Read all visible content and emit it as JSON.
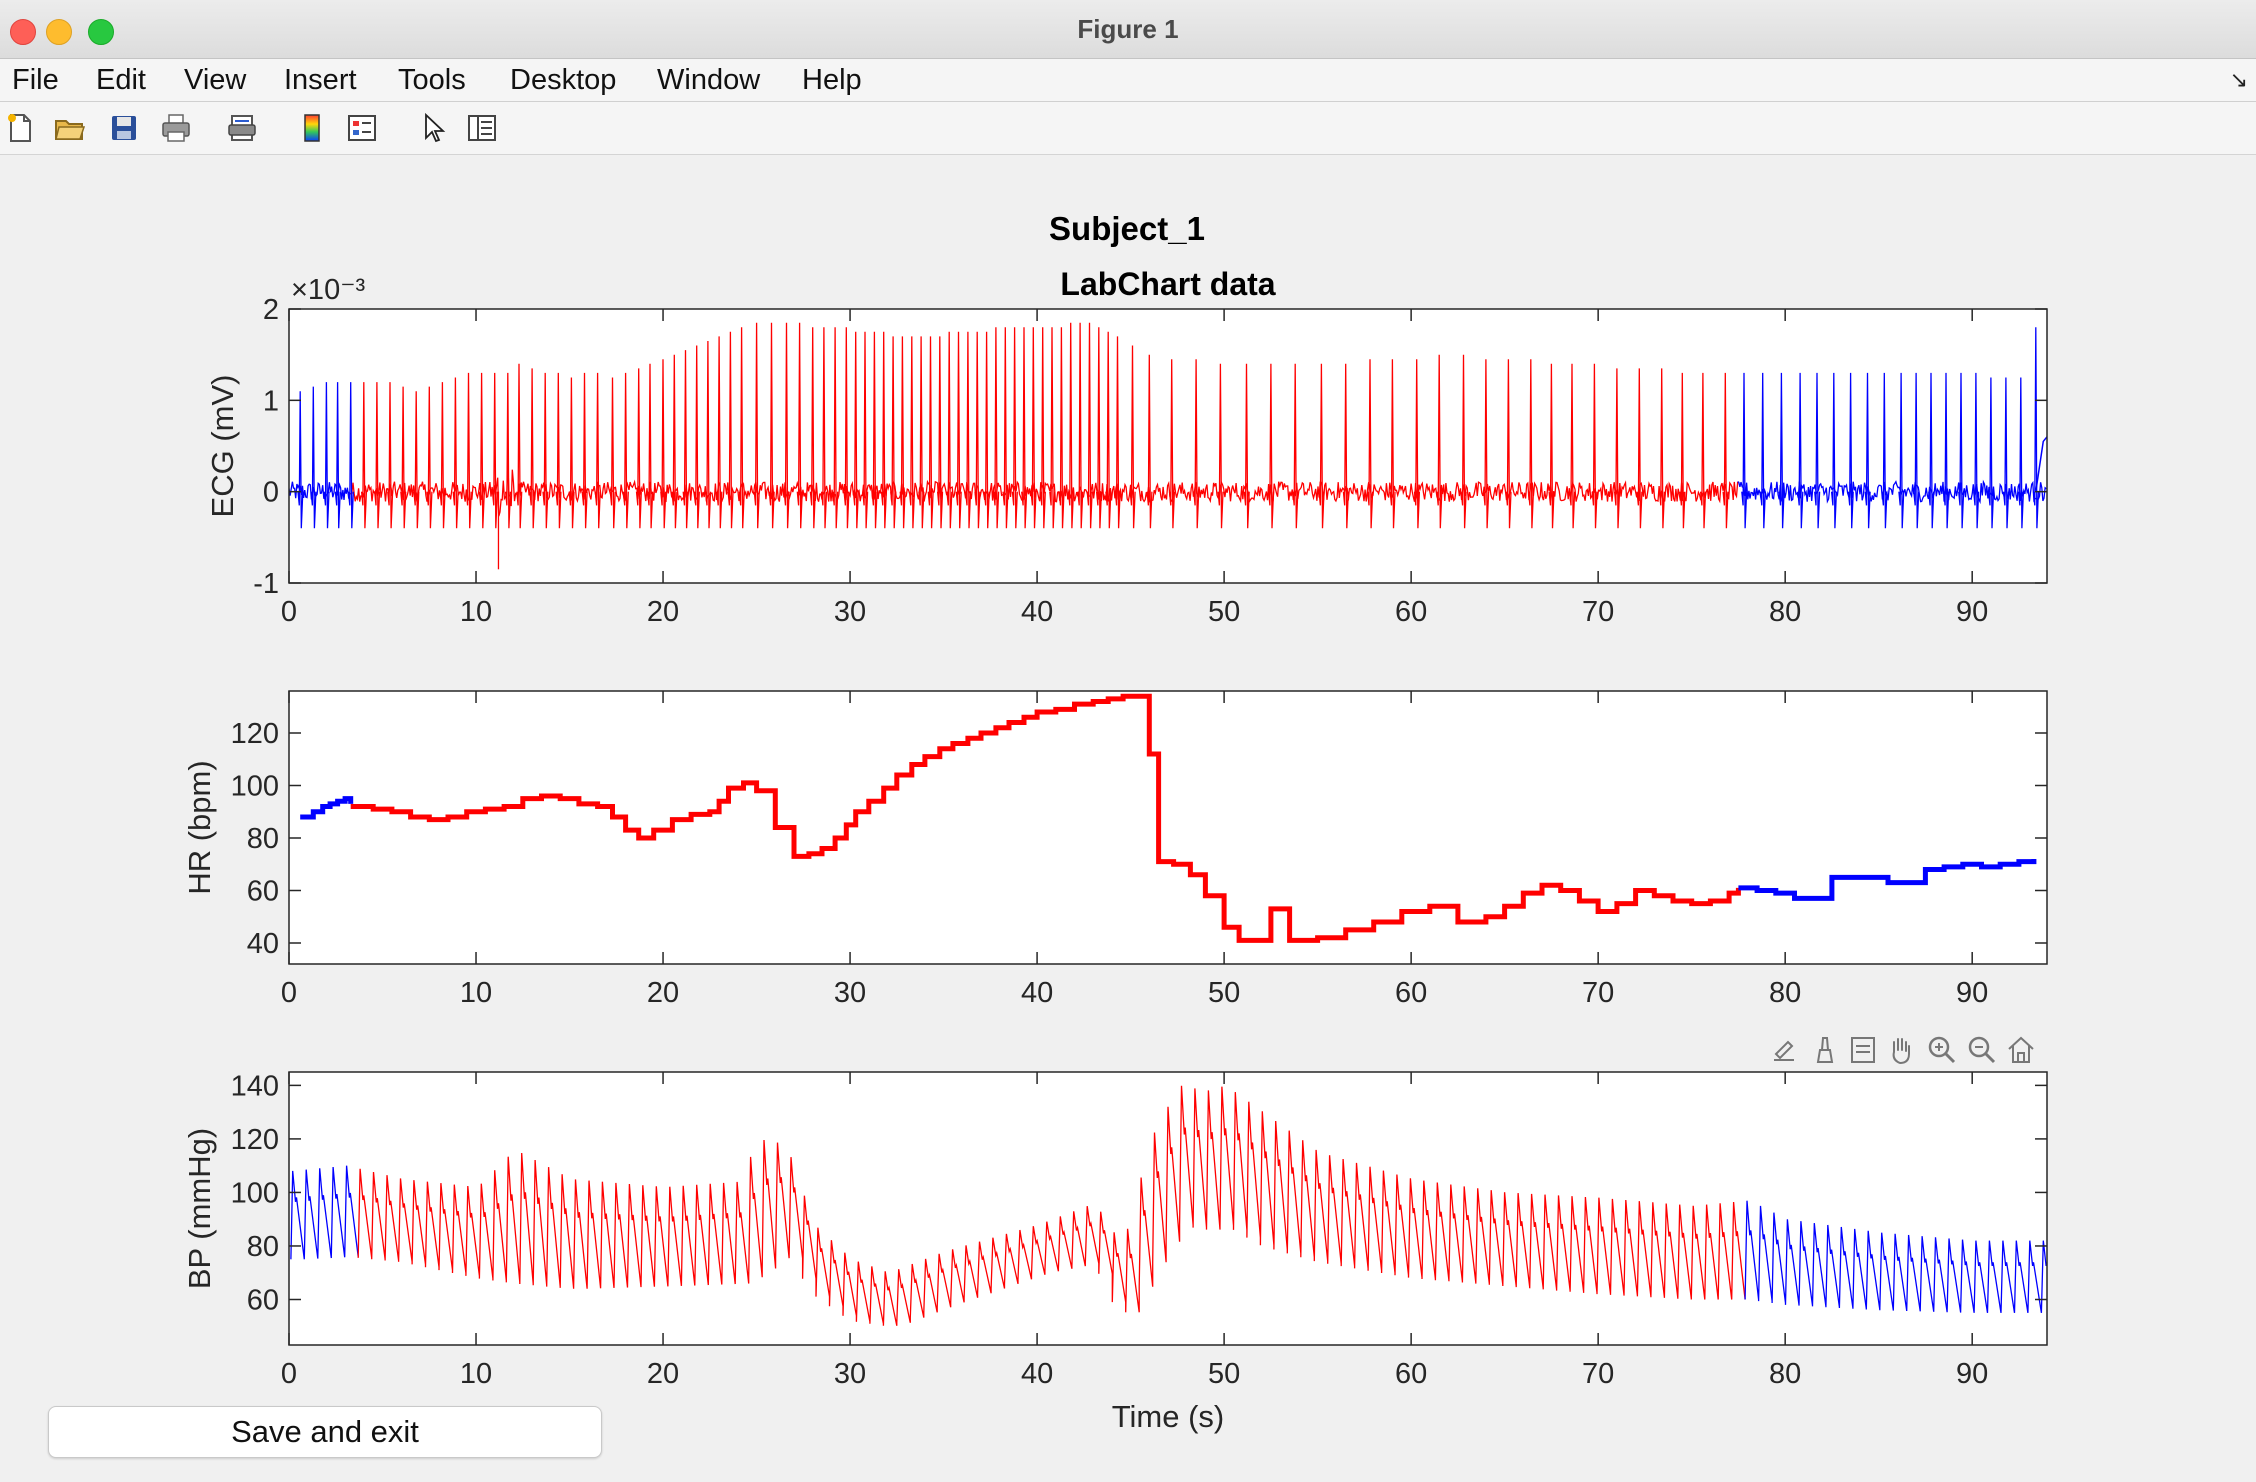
{
  "window": {
    "title": "Figure 1"
  },
  "menu": [
    "File",
    "Edit",
    "View",
    "Insert",
    "Tools",
    "Desktop",
    "Window",
    "Help"
  ],
  "toolbar": {
    "icons": [
      "new-figure-icon",
      "open-file-icon",
      "save-icon",
      "print-icon",
      "print-preview-icon",
      "colorbar-icon",
      "legend-icon",
      "pointer-icon",
      "property-inspector-icon"
    ]
  },
  "axes_toolbar": {
    "icons": [
      "export-icon",
      "brush-icon",
      "datatip-icon",
      "pan-icon",
      "zoom-in-icon",
      "zoom-out-icon",
      "home-icon"
    ]
  },
  "figure": {
    "suptitle": "Subject_1",
    "save_button": "Save and exit"
  },
  "colors": {
    "baseline": "#0000ff",
    "event": "#ff0000",
    "axis": "#262626"
  },
  "chart_data": [
    {
      "type": "line",
      "title": "LabChart data",
      "ylabel": "ECG (mV)",
      "xlabel": "",
      "xlim": [
        0,
        94
      ],
      "ylim": [
        -1,
        2
      ],
      "yticks": [
        -1,
        0,
        1,
        2
      ],
      "xticks": [
        0,
        10,
        20,
        30,
        40,
        50,
        60,
        70,
        80,
        90
      ],
      "y_exponent": "×10⁻³",
      "segments": [
        {
          "color": "#0000ff",
          "x_start": 0,
          "x_end": 3.3
        },
        {
          "color": "#ff0000",
          "x_start": 3.3,
          "x_end": 77.5
        },
        {
          "color": "#0000ff",
          "x_start": 77.5,
          "x_end": 94
        }
      ],
      "r_peaks": [
        [
          0.6,
          1.1
        ],
        [
          1.3,
          1.15
        ],
        [
          2.0,
          1.2
        ],
        [
          2.6,
          1.2
        ],
        [
          3.3,
          1.2
        ],
        [
          4.0,
          1.2
        ],
        [
          4.7,
          1.2
        ],
        [
          5.4,
          1.2
        ],
        [
          6.1,
          1.15
        ],
        [
          6.8,
          1.1
        ],
        [
          7.5,
          1.15
        ],
        [
          8.2,
          1.2
        ],
        [
          8.9,
          1.25
        ],
        [
          9.6,
          1.3
        ],
        [
          10.3,
          1.3
        ],
        [
          11.0,
          1.3
        ],
        [
          11.7,
          1.3
        ],
        [
          12.3,
          1.4
        ],
        [
          13.0,
          1.35
        ],
        [
          13.7,
          1.3
        ],
        [
          14.4,
          1.3
        ],
        [
          15.1,
          1.25
        ],
        [
          15.8,
          1.3
        ],
        [
          16.5,
          1.3
        ],
        [
          17.3,
          1.25
        ],
        [
          18.0,
          1.3
        ],
        [
          18.7,
          1.35
        ],
        [
          19.3,
          1.4
        ],
        [
          20.0,
          1.45
        ],
        [
          20.6,
          1.5
        ],
        [
          21.2,
          1.55
        ],
        [
          21.8,
          1.6
        ],
        [
          22.4,
          1.65
        ],
        [
          23.0,
          1.7
        ],
        [
          23.6,
          1.75
        ],
        [
          24.2,
          1.8
        ],
        [
          25.0,
          1.85
        ],
        [
          25.8,
          1.85
        ],
        [
          26.6,
          1.85
        ],
        [
          27.3,
          1.85
        ],
        [
          28.0,
          1.8
        ],
        [
          28.6,
          1.8
        ],
        [
          29.2,
          1.8
        ],
        [
          29.8,
          1.8
        ],
        [
          30.3,
          1.75
        ],
        [
          30.8,
          1.75
        ],
        [
          31.3,
          1.75
        ],
        [
          31.8,
          1.75
        ],
        [
          32.3,
          1.7
        ],
        [
          32.8,
          1.7
        ],
        [
          33.3,
          1.7
        ],
        [
          33.8,
          1.7
        ],
        [
          34.3,
          1.7
        ],
        [
          34.8,
          1.7
        ],
        [
          35.3,
          1.75
        ],
        [
          35.8,
          1.75
        ],
        [
          36.3,
          1.75
        ],
        [
          36.8,
          1.75
        ],
        [
          37.3,
          1.75
        ],
        [
          37.8,
          1.8
        ],
        [
          38.3,
          1.8
        ],
        [
          38.8,
          1.8
        ],
        [
          39.3,
          1.8
        ],
        [
          39.8,
          1.8
        ],
        [
          40.3,
          1.8
        ],
        [
          40.8,
          1.8
        ],
        [
          41.3,
          1.8
        ],
        [
          41.8,
          1.85
        ],
        [
          42.3,
          1.85
        ],
        [
          42.8,
          1.85
        ],
        [
          43.3,
          1.8
        ],
        [
          43.8,
          1.75
        ],
        [
          44.3,
          1.7
        ],
        [
          45.1,
          1.6
        ],
        [
          46.0,
          1.5
        ],
        [
          47.2,
          1.45
        ],
        [
          48.5,
          1.45
        ],
        [
          49.8,
          1.4
        ],
        [
          51.2,
          1.4
        ],
        [
          52.5,
          1.4
        ],
        [
          53.8,
          1.4
        ],
        [
          55.2,
          1.4
        ],
        [
          56.5,
          1.4
        ],
        [
          57.8,
          1.45
        ],
        [
          59.0,
          1.45
        ],
        [
          60.3,
          1.45
        ],
        [
          61.5,
          1.5
        ],
        [
          62.8,
          1.5
        ],
        [
          64.0,
          1.45
        ],
        [
          65.2,
          1.45
        ],
        [
          66.4,
          1.45
        ],
        [
          67.5,
          1.4
        ],
        [
          68.6,
          1.4
        ],
        [
          69.8,
          1.4
        ],
        [
          71.0,
          1.35
        ],
        [
          72.2,
          1.35
        ],
        [
          73.4,
          1.35
        ],
        [
          74.5,
          1.3
        ],
        [
          75.6,
          1.3
        ],
        [
          76.8,
          1.3
        ],
        [
          77.8,
          1.3
        ],
        [
          78.8,
          1.3
        ],
        [
          79.8,
          1.3
        ],
        [
          80.8,
          1.3
        ],
        [
          81.7,
          1.3
        ],
        [
          82.6,
          1.3
        ],
        [
          83.5,
          1.3
        ],
        [
          84.4,
          1.3
        ],
        [
          85.3,
          1.3
        ],
        [
          86.2,
          1.3
        ],
        [
          87.0,
          1.3
        ],
        [
          87.8,
          1.3
        ],
        [
          88.6,
          1.3
        ],
        [
          89.4,
          1.3
        ],
        [
          90.2,
          1.3
        ],
        [
          91.0,
          1.25
        ],
        [
          91.8,
          1.25
        ],
        [
          92.6,
          1.25
        ],
        [
          93.4,
          1.8
        ]
      ]
    },
    {
      "type": "line",
      "ylabel": "HR (bpm)",
      "xlabel": "",
      "xlim": [
        0,
        94
      ],
      "ylim": [
        32,
        136
      ],
      "yticks": [
        40,
        60,
        80,
        100,
        120
      ],
      "xticks": [
        0,
        10,
        20,
        30,
        40,
        50,
        60,
        70,
        80,
        90
      ],
      "series": [
        {
          "color": "#0000ff",
          "x": [
            0.6,
            1.0,
            1.3,
            1.8,
            2.2,
            2.6,
            3.0,
            3.3
          ],
          "y": [
            88,
            88,
            90,
            92,
            93,
            94,
            95,
            93
          ]
        },
        {
          "color": "#ff0000",
          "x": [
            3.3,
            4.5,
            5.5,
            6.5,
            7.5,
            8.5,
            9.5,
            10.5,
            11.5,
            12.5,
            13.5,
            14.5,
            15.5,
            16.5,
            17.3,
            18.0,
            18.7,
            19.5,
            20.5,
            21.5,
            22.5,
            23.0,
            23.5,
            24.3,
            25.0,
            26.0,
            27.0,
            27.8,
            28.5,
            29.2,
            29.8,
            30.3,
            31.0,
            31.8,
            32.5,
            33.3,
            34.0,
            34.8,
            35.5,
            36.3,
            37.0,
            37.8,
            38.5,
            39.3,
            40.0,
            41.0,
            42.0,
            43.0,
            43.8,
            44.6,
            45.5,
            46.0,
            46.5,
            47.3,
            48.2,
            49.0,
            50.0,
            50.8,
            51.5,
            52.5,
            53.5,
            55.0,
            56.5,
            58.0,
            59.5,
            61.0,
            62.5,
            64.0,
            65.0,
            66.0,
            67.0,
            68.0,
            69.0,
            70.0,
            71.0,
            72.0,
            73.0,
            74.0,
            75.0,
            76.0,
            77.0,
            77.5
          ],
          "y": [
            92,
            91,
            90,
            88,
            87,
            88,
            90,
            91,
            92,
            95,
            96,
            95,
            93,
            92,
            88,
            83,
            80,
            83,
            87,
            89,
            90,
            94,
            99,
            101,
            98,
            84,
            73,
            74,
            76,
            80,
            85,
            90,
            94,
            99,
            104,
            108,
            111,
            114,
            116,
            118,
            120,
            122,
            124,
            126,
            128,
            129,
            131,
            132,
            133,
            134,
            134,
            112,
            71,
            70,
            66,
            58,
            46,
            41,
            41,
            53,
            41,
            42,
            45,
            48,
            52,
            54,
            48,
            50,
            54,
            59,
            62,
            60,
            56,
            52,
            55,
            60,
            58,
            56,
            55,
            56,
            59,
            61
          ]
        },
        {
          "color": "#0000ff",
          "x": [
            77.5,
            78.5,
            79.5,
            80.5,
            81.5,
            82.5,
            83.5,
            84.5,
            85.5,
            86.5,
            87.5,
            88.5,
            89.5,
            90.5,
            91.5,
            92.5,
            93.3
          ],
          "y": [
            61,
            60,
            59,
            57,
            57,
            65,
            65,
            65,
            63,
            63,
            68,
            69,
            70,
            69,
            70,
            71,
            72
          ]
        }
      ]
    },
    {
      "type": "line",
      "ylabel": "BP (mmHg)",
      "xlabel": "Time (s)",
      "xlim": [
        0,
        94
      ],
      "ylim": [
        43,
        145
      ],
      "yticks": [
        60,
        80,
        100,
        120,
        140
      ],
      "xticks": [
        0,
        10,
        20,
        30,
        40,
        50,
        60,
        70,
        80,
        90
      ],
      "segments": [
        {
          "color": "#0000ff",
          "x_start": 0,
          "x_end": 3.3
        },
        {
          "color": "#ff0000",
          "x_start": 3.3,
          "x_end": 77.5
        },
        {
          "color": "#0000ff",
          "x_start": 77.5,
          "x_end": 94
        }
      ],
      "envelope": {
        "x": [
          0,
          3,
          6,
          10,
          12,
          15,
          20,
          24,
          25,
          26.5,
          28,
          30,
          32,
          35,
          40,
          43,
          44.5,
          46,
          47.5,
          49,
          50,
          52,
          55,
          60,
          65,
          70,
          75,
          78,
          80,
          85,
          90,
          94
        ],
        "upper": [
          108,
          110,
          105,
          102,
          116,
          105,
          102,
          104,
          120,
          118,
          88,
          75,
          70,
          78,
          88,
          96,
          80,
          120,
          140,
          138,
          140,
          130,
          115,
          105,
          100,
          98,
          95,
          97,
          90,
          85,
          82,
          82
        ],
        "lower": [
          75,
          76,
          74,
          68,
          66,
          64,
          65,
          66,
          70,
          78,
          62,
          52,
          50,
          58,
          70,
          74,
          52,
          72,
          88,
          86,
          88,
          80,
          74,
          68,
          65,
          62,
          60,
          60,
          58,
          56,
          55,
          55
        ]
      }
    }
  ]
}
